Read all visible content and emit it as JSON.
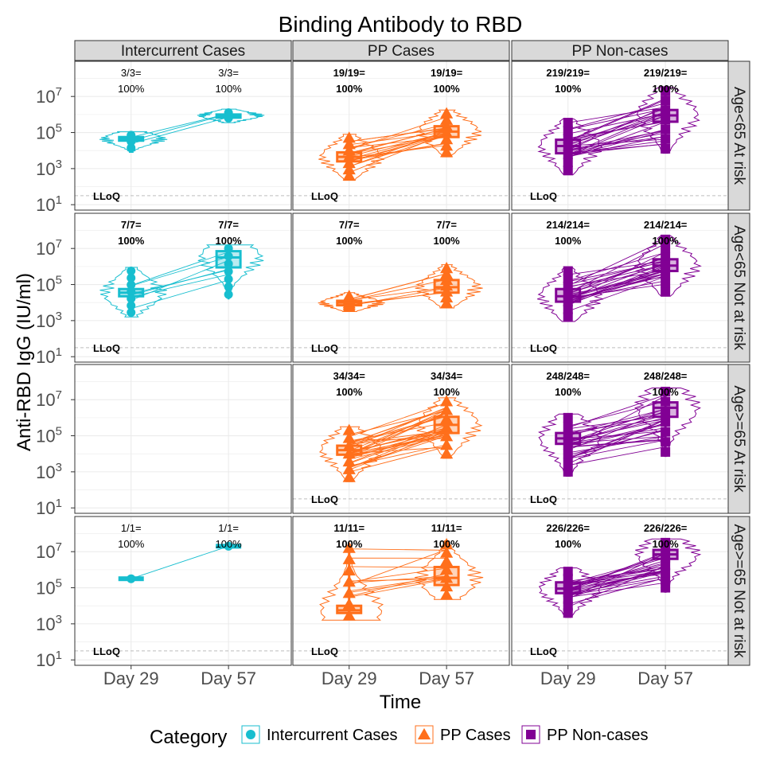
{
  "chart_data": {
    "type": "faceted violin-box-spaghetti plot",
    "title": "Binding Antibody to RBD",
    "xlabel": "Time",
    "ylabel": "Anti-RBD IgG (IU/ml)",
    "y_scale": "log10",
    "ylim_log10": [
      0.7,
      8.95
    ],
    "y_ticks": [
      "10^1",
      "10^3",
      "10^5",
      "10^7"
    ],
    "lloq_log10": 1.5,
    "lloq_label": "LLoQ",
    "x_categories": [
      "Day 29",
      "Day 57"
    ],
    "columns": [
      "Intercurrent Cases",
      "PP Cases",
      "PP Non-cases"
    ],
    "rows": [
      "Age<65 At risk",
      "Age<65 Not at risk",
      "Age>=65 At risk",
      "Age>=65 Not at risk"
    ],
    "legend": {
      "title": "Category",
      "entries": [
        {
          "label": "Intercurrent Cases",
          "color": "#17BECF",
          "shape": "circle"
        },
        {
          "label": "PP Cases",
          "color": "#FF6F1B",
          "shape": "triangle"
        },
        {
          "label": "PP Non-cases",
          "color": "#810094",
          "shape": "square"
        }
      ]
    },
    "panels": [
      {
        "row": 0,
        "col": 0,
        "empty": false,
        "bold": false,
        "annotations": [
          [
            "3/3=",
            "100%"
          ],
          [
            "3/3=",
            "100%"
          ]
        ],
        "median_log10": [
          4.65,
          5.93
        ],
        "q1_log10": [
          4.55,
          5.85
        ],
        "q3_log10": [
          4.75,
          6.0
        ],
        "min_log10": [
          4.15,
          5.8
        ],
        "max_log10": [
          4.85,
          6.1
        ],
        "n_lines": 3
      },
      {
        "row": 0,
        "col": 1,
        "empty": false,
        "bold": true,
        "annotations": [
          [
            "19/19=",
            "100%"
          ],
          [
            "19/19=",
            "100%"
          ]
        ],
        "median_log10": [
          3.65,
          5.05
        ],
        "q1_log10": [
          3.4,
          4.75
        ],
        "q3_log10": [
          3.9,
          5.35
        ],
        "min_log10": [
          2.6,
          3.9
        ],
        "max_log10": [
          4.7,
          6.05
        ],
        "n_lines": 19
      },
      {
        "row": 0,
        "col": 2,
        "empty": false,
        "bold": true,
        "annotations": [
          [
            "219/219=",
            "100%"
          ],
          [
            "219/219=",
            "100%"
          ]
        ],
        "median_log10": [
          4.25,
          5.95
        ],
        "q1_log10": [
          3.85,
          5.6
        ],
        "q3_log10": [
          4.6,
          6.25
        ],
        "min_log10": [
          2.9,
          4.1
        ],
        "max_log10": [
          5.55,
          7.3
        ],
        "n_lines": 26
      },
      {
        "row": 1,
        "col": 0,
        "empty": false,
        "bold": true,
        "annotations": [
          [
            "7/7=",
            "100%"
          ],
          [
            "7/7=",
            "100%"
          ]
        ],
        "median_log10": [
          4.55,
          6.5
        ],
        "q1_log10": [
          4.35,
          5.95
        ],
        "q3_log10": [
          4.75,
          6.85
        ],
        "min_log10": [
          3.45,
          4.45
        ],
        "max_log10": [
          5.75,
          7.0
        ],
        "n_lines": 7
      },
      {
        "row": 1,
        "col": 1,
        "empty": false,
        "bold": true,
        "annotations": [
          [
            "7/7=",
            "100%"
          ],
          [
            "7/7=",
            "100%"
          ]
        ],
        "median_log10": [
          4.0,
          4.85
        ],
        "q1_log10": [
          3.85,
          4.55
        ],
        "q3_log10": [
          4.1,
          5.25
        ],
        "min_log10": [
          3.75,
          3.95
        ],
        "max_log10": [
          4.35,
          5.9
        ],
        "n_lines": 7
      },
      {
        "row": 1,
        "col": 2,
        "empty": false,
        "bold": true,
        "annotations": [
          [
            "214/214=",
            "100%"
          ],
          [
            "214/214=",
            "100%"
          ]
        ],
        "median_log10": [
          4.35,
          6.05
        ],
        "q1_log10": [
          4.05,
          5.75
        ],
        "q3_log10": [
          4.75,
          6.4
        ],
        "min_log10": [
          3.2,
          4.6
        ],
        "max_log10": [
          5.75,
          7.5
        ],
        "n_lines": 26
      },
      {
        "row": 2,
        "col": 0,
        "empty": true
      },
      {
        "row": 2,
        "col": 1,
        "empty": false,
        "bold": true,
        "annotations": [
          [
            "34/34=",
            "100%"
          ],
          [
            "34/34=",
            "100%"
          ]
        ],
        "median_log10": [
          4.2,
          5.6
        ],
        "q1_log10": [
          3.95,
          5.15
        ],
        "q3_log10": [
          4.45,
          6.05
        ],
        "min_log10": [
          2.7,
          4.0
        ],
        "max_log10": [
          5.3,
          6.9
        ],
        "n_lines": 34
      },
      {
        "row": 2,
        "col": 2,
        "empty": false,
        "bold": true,
        "annotations": [
          [
            "248/248=",
            "100%"
          ],
          [
            "248/248=",
            "100%"
          ]
        ],
        "median_log10": [
          4.85,
          6.55
        ],
        "q1_log10": [
          4.55,
          6.05
        ],
        "q3_log10": [
          5.15,
          6.85
        ],
        "min_log10": [
          3.0,
          4.1
        ],
        "max_log10": [
          6.0,
          7.45
        ],
        "n_lines": 28
      },
      {
        "row": 3,
        "col": 0,
        "empty": false,
        "bold": false,
        "annotations": [
          [
            "1/1=",
            "100%"
          ],
          [
            "1/1=",
            "100%"
          ]
        ],
        "median_log10": [
          5.5,
          7.3
        ],
        "q1_log10": [
          5.5,
          7.3
        ],
        "q3_log10": [
          5.5,
          7.3
        ],
        "min_log10": [
          5.5,
          7.3
        ],
        "max_log10": [
          5.5,
          7.3
        ],
        "n_lines": 1
      },
      {
        "row": 3,
        "col": 1,
        "empty": false,
        "bold": true,
        "annotations": [
          [
            "11/11=",
            "100%"
          ],
          [
            "11/11=",
            "100%"
          ]
        ],
        "median_log10": [
          3.75,
          5.55
        ],
        "q1_log10": [
          3.6,
          5.15
        ],
        "q3_log10": [
          4.0,
          6.15
        ],
        "min_log10": [
          3.45,
          4.6
        ],
        "max_log10": [
          7.2,
          7.4
        ],
        "n_lines": 11
      },
      {
        "row": 3,
        "col": 2,
        "empty": false,
        "bold": true,
        "annotations": [
          [
            "226/226=",
            "100%"
          ],
          [
            "226/226=",
            "100%"
          ]
        ],
        "median_log10": [
          4.95,
          6.85
        ],
        "q1_log10": [
          4.7,
          6.6
        ],
        "q3_log10": [
          5.3,
          7.1
        ],
        "min_log10": [
          3.6,
          5.0
        ],
        "max_log10": [
          5.9,
          7.5
        ],
        "n_lines": 24
      }
    ]
  }
}
